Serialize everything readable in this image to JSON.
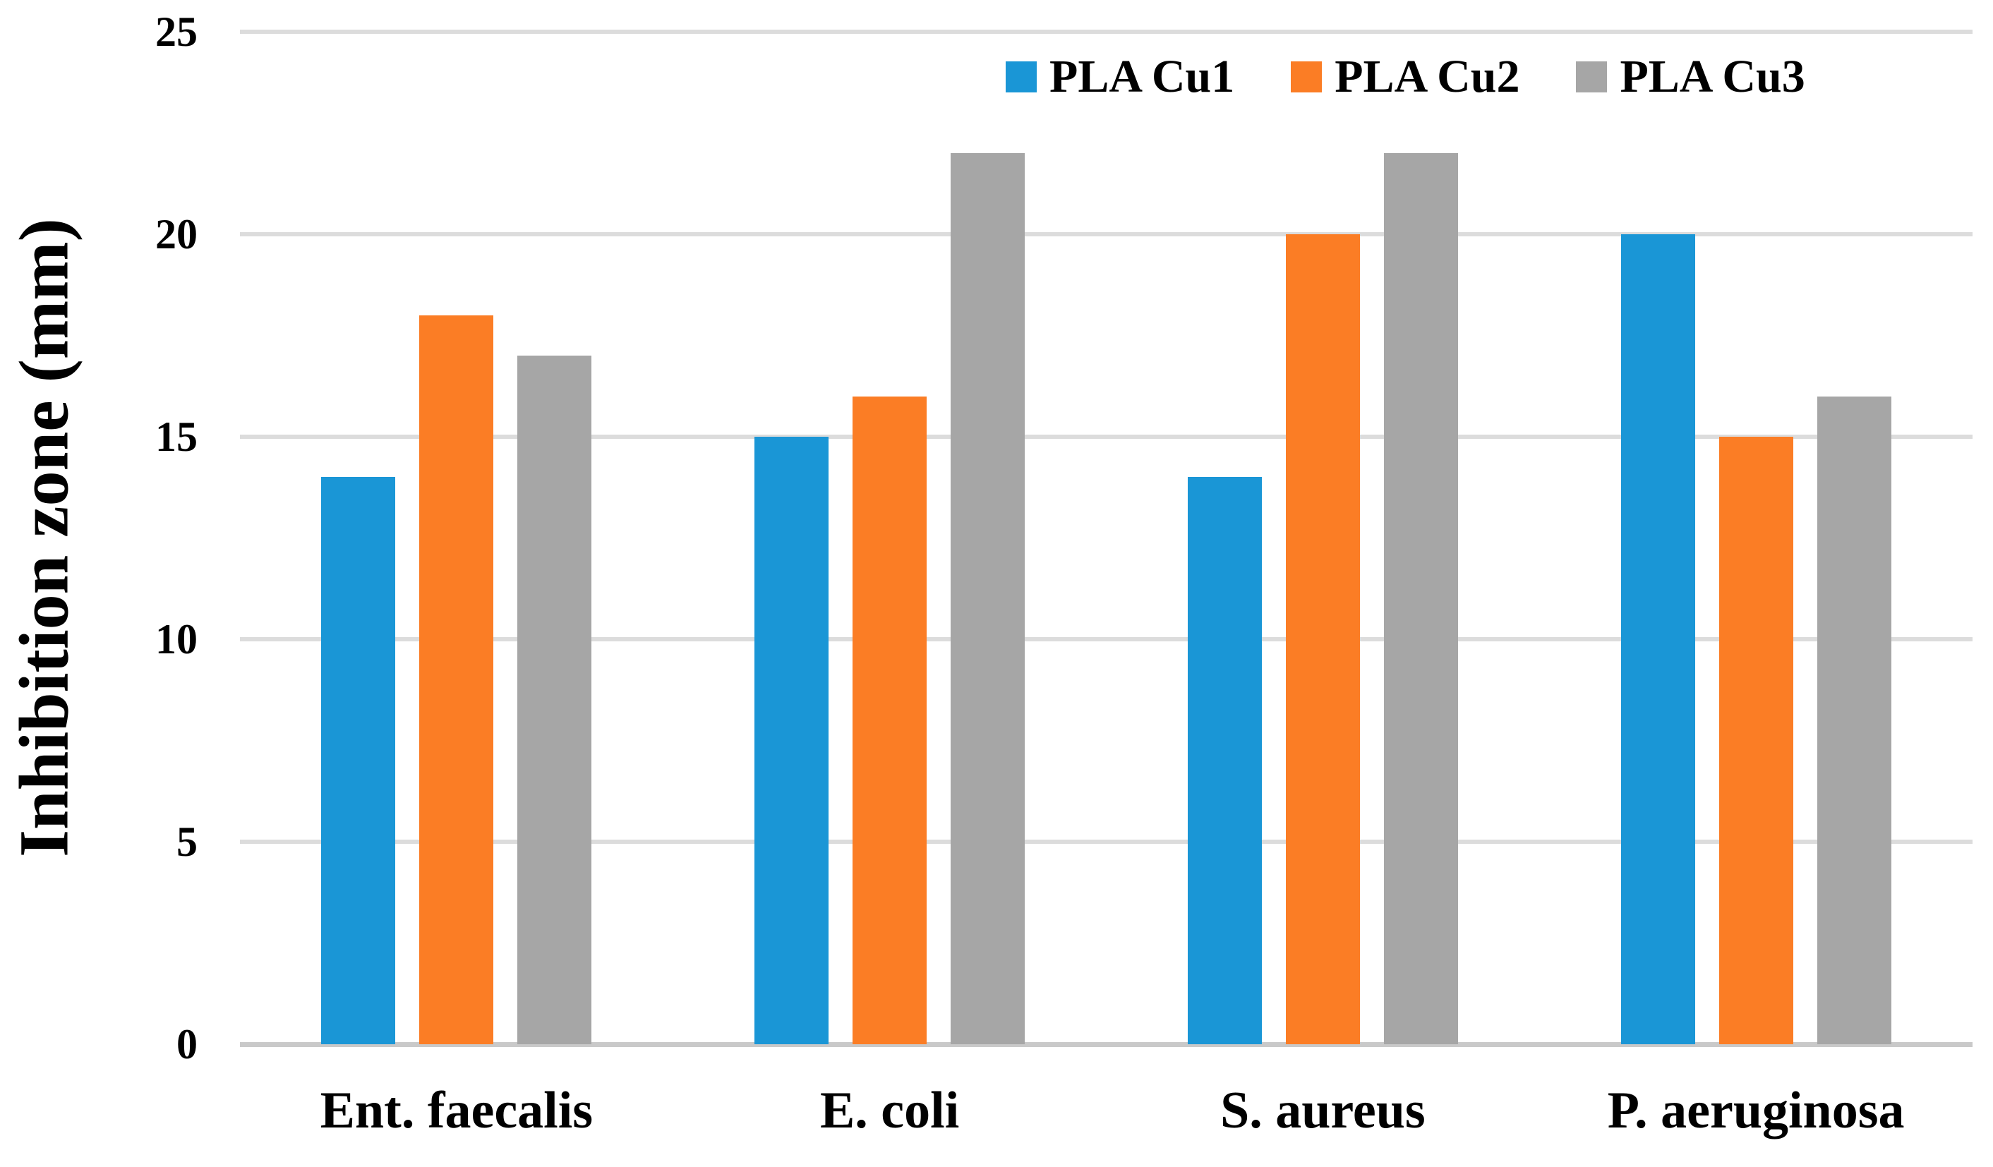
{
  "chart_data": {
    "type": "bar",
    "title": "",
    "xlabel": "",
    "ylabel": "Inhibition zone (mm)",
    "ylim": [
      0,
      25
    ],
    "yticks": [
      0,
      5,
      10,
      15,
      20,
      25
    ],
    "grid": true,
    "legend_position": "top-right",
    "categories": [
      "Ent. faecalis",
      "E. coli",
      "S. aureus",
      "P. aeruginosa"
    ],
    "series": [
      {
        "name": "PLA Cu1",
        "color": "#1a96d6",
        "values": [
          14,
          15,
          14,
          20
        ]
      },
      {
        "name": "PLA Cu2",
        "color": "#fb7d25",
        "values": [
          18,
          16,
          20,
          15
        ]
      },
      {
        "name": "PLA Cu3",
        "color": "#a6a6a6",
        "values": [
          17,
          22,
          22,
          16
        ]
      }
    ],
    "style": {
      "gridline_color": "#dcdcdc",
      "axis_line_color": "#c9c9c9",
      "text_color": "#000000",
      "background_color": "#ffffff"
    }
  }
}
